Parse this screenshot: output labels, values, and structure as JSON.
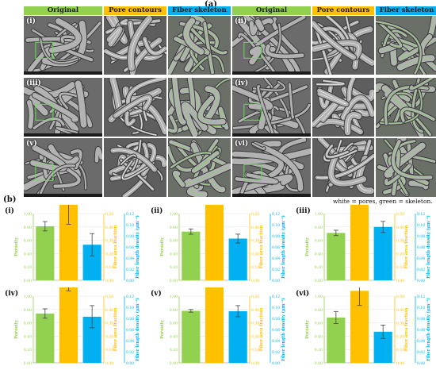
{
  "panel_a_label": "(a)",
  "panel_b_label": "(b)",
  "column_headers": [
    {
      "label": "Original",
      "color": "#92d050"
    },
    {
      "label": "Pore contours",
      "color": "#ffc000"
    },
    {
      "label": "Fiber skeleton",
      "color": "#00b0f0"
    },
    {
      "label": "Original",
      "color": "#92d050"
    },
    {
      "label": "Pore contours",
      "color": "#ffc000"
    },
    {
      "label": "Fiber skeleton",
      "color": "#00b0f0"
    }
  ],
  "sample_labels": [
    "(i)",
    "(ii)",
    "(iii)",
    "(iv)",
    "(v)",
    "(vi)"
  ],
  "caption": "white = pores, green = skeleton.",
  "colors": {
    "porosity": "#92d050",
    "fiber_area_fraction": "#ffc000",
    "fiber_length_density": "#00b0f0"
  },
  "chart_data": [
    {
      "type": "bar",
      "panel": "(i)",
      "categories": [
        "Porosity",
        "Fiber area fraction",
        "Fiber length density (μm⁻¹)"
      ],
      "values": [
        0.81,
        0.58,
        0.064
      ],
      "errors": [
        0.07,
        0.16,
        0.02
      ],
      "axis_left": {
        "label": "Porosity",
        "ylim": [
          0,
          1.0
        ],
        "ticks": [
          "0.00",
          "0.20",
          "0.40",
          "0.60",
          "0.80",
          "1.00"
        ]
      },
      "axis_mid": {
        "label": "Fiber area fraction",
        "ylim": [
          0,
          0.5
        ],
        "ticks": [
          "0.00",
          "0.10",
          "0.20",
          "0.30",
          "0.40",
          "0.50"
        ]
      },
      "axis_right": {
        "label": "Fiber length density (μm⁻¹)",
        "ylim": [
          0,
          0.12
        ],
        "ticks": [
          "0.00",
          "0.02",
          "0.04",
          "0.06",
          "0.08",
          "0.10",
          "0.12"
        ]
      }
    },
    {
      "type": "bar",
      "panel": "(ii)",
      "categories": [
        "Porosity",
        "Fiber area fraction",
        "Fiber length density (μm⁻¹)"
      ],
      "values": [
        0.73,
        0.66,
        0.075
      ],
      "errors": [
        0.04,
        0.07,
        0.008
      ],
      "axis_left": {
        "label": "Porosity",
        "ylim": [
          0,
          1.0
        ],
        "ticks": [
          "0.00",
          "0.20",
          "0.40",
          "0.60",
          "0.80",
          "1.00"
        ]
      },
      "axis_mid": {
        "label": "Fiber area fraction",
        "ylim": [
          0,
          0.5
        ],
        "ticks": [
          "0.00",
          "0.10",
          "0.20",
          "0.30",
          "0.40",
          "0.50"
        ]
      },
      "axis_right": {
        "label": "Fiber length density (μm⁻¹)",
        "ylim": [
          0,
          0.12
        ],
        "ticks": [
          "0.00",
          "0.02",
          "0.04",
          "0.06",
          "0.08",
          "0.10",
          "0.12"
        ]
      }
    },
    {
      "type": "bar",
      "panel": "(iii)",
      "categories": [
        "Porosity",
        "Fiber area fraction",
        "Fiber length density (μm⁻¹)"
      ],
      "values": [
        0.71,
        0.86,
        0.096
      ],
      "errors": [
        0.04,
        0.07,
        0.01
      ],
      "axis_left": {
        "label": "Porosity",
        "ylim": [
          0,
          1.0
        ],
        "ticks": [
          "0.00",
          "0.20",
          "0.40",
          "0.60",
          "0.80",
          "1.00"
        ]
      },
      "axis_mid": {
        "label": "Fiber area fraction",
        "ylim": [
          0,
          0.5
        ],
        "ticks": [
          "0.00",
          "0.10",
          "0.20",
          "0.30",
          "0.40",
          "0.50"
        ]
      },
      "axis_right": {
        "label": "Fiber length density (μm⁻¹)",
        "ylim": [
          0,
          0.12
        ],
        "ticks": [
          "0.00",
          "0.02",
          "0.04",
          "0.06",
          "0.08",
          "0.10",
          "0.12"
        ]
      }
    },
    {
      "type": "bar",
      "panel": "(iv)",
      "categories": [
        "Porosity",
        "Fiber area fraction",
        "Fiber length density (μm⁻¹)"
      ],
      "values": [
        0.74,
        0.73,
        0.083
      ],
      "errors": [
        0.07,
        0.19,
        0.02
      ],
      "axis_left": {
        "label": "Porosity",
        "ylim": [
          0,
          1.0
        ],
        "ticks": [
          "0.00",
          "0.20",
          "0.40",
          "0.60",
          "0.80",
          "1.00"
        ]
      },
      "axis_mid": {
        "label": "Fiber area fraction",
        "ylim": [
          0,
          0.5
        ],
        "ticks": [
          "0.00",
          "0.10",
          "0.20",
          "0.30",
          "0.40",
          "0.50"
        ]
      },
      "axis_right": {
        "label": "Fiber length density (μm⁻¹)",
        "ylim": [
          0,
          0.12
        ],
        "ticks": [
          "0.00",
          "0.02",
          "0.04",
          "0.06",
          "0.08",
          "0.10",
          "0.12"
        ]
      }
    },
    {
      "type": "bar",
      "panel": "(v)",
      "categories": [
        "Porosity",
        "Fiber area fraction",
        "Fiber length density (μm⁻¹)"
      ],
      "values": [
        0.78,
        0.84,
        0.093
      ],
      "errors": [
        0.02,
        0.08,
        0.01
      ],
      "axis_left": {
        "label": "Porosity",
        "ylim": [
          0,
          1.0
        ],
        "ticks": [
          "0.00",
          "0.20",
          "0.40",
          "0.60",
          "0.80",
          "1.00"
        ]
      },
      "axis_mid": {
        "label": "Fiber area fraction",
        "ylim": [
          0,
          0.5
        ],
        "ticks": [
          "0.00",
          "0.10",
          "0.20",
          "0.30",
          "0.40",
          "0.50"
        ]
      },
      "axis_right": {
        "label": "Fiber length density (μm⁻¹)",
        "ylim": [
          0,
          0.12
        ],
        "ticks": [
          "0.00",
          "0.02",
          "0.04",
          "0.06",
          "0.08",
          "0.10",
          "0.12"
        ]
      }
    },
    {
      "type": "bar",
      "panel": "(vi)",
      "categories": [
        "Porosity",
        "Fiber area fraction",
        "Fiber length density (μm⁻¹)"
      ],
      "values": [
        0.68,
        0.54,
        0.056
      ],
      "errors": [
        0.09,
        0.11,
        0.012
      ],
      "axis_left": {
        "label": "Porosity",
        "ylim": [
          0,
          1.0
        ],
        "ticks": [
          "0.00",
          "0.20",
          "0.40",
          "0.60",
          "0.80",
          "1.00"
        ]
      },
      "axis_mid": {
        "label": "Fiber area fraction",
        "ylim": [
          0,
          0.5
        ],
        "ticks": [
          "0.00",
          "0.10",
          "0.20",
          "0.30",
          "0.40",
          "0.50"
        ]
      },
      "axis_right": {
        "label": "Fiber length density (μm⁻¹)",
        "ylim": [
          0,
          0.12
        ],
        "ticks": [
          "0.00",
          "0.02",
          "0.04",
          "0.06",
          "0.08",
          "0.10",
          "0.12"
        ]
      }
    }
  ]
}
